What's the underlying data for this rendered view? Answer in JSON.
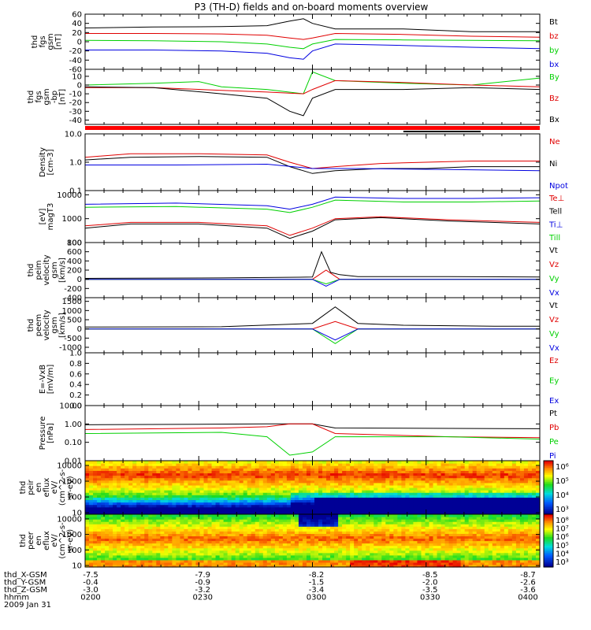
{
  "title": "P3 (TH-D) fields and on-board moments overview",
  "colors": {
    "black": "#000000",
    "red": "#e00000",
    "green": "#00d000",
    "blue": "#0000e0"
  },
  "chart_data": [
    {
      "type": "line",
      "ylabel": [
        "thd",
        "fgs",
        "gsm",
        "[nT]"
      ],
      "yticks": [
        "60",
        "40",
        "20",
        "0",
        "-20",
        "-40",
        "-60"
      ],
      "ylim": [
        -60,
        60
      ],
      "log": false,
      "series": [
        {
          "name": "Bt",
          "color": "#000000",
          "x": [
            0,
            0.15,
            0.3,
            0.4,
            0.45,
            0.48,
            0.5,
            0.55,
            0.7,
            0.85,
            1
          ],
          "y": [
            30,
            32,
            33,
            35,
            45,
            50,
            40,
            28,
            28,
            22,
            22
          ]
        },
        {
          "name": "bz",
          "color": "#e00000",
          "x": [
            0,
            0.15,
            0.3,
            0.4,
            0.45,
            0.48,
            0.5,
            0.55,
            0.7,
            0.85,
            1
          ],
          "y": [
            18,
            18,
            17,
            14,
            8,
            5,
            8,
            18,
            16,
            12,
            10
          ]
        },
        {
          "name": "by",
          "color": "#00d000",
          "x": [
            0,
            0.15,
            0.3,
            0.4,
            0.45,
            0.48,
            0.5,
            0.55,
            0.7,
            0.85,
            1
          ],
          "y": [
            3,
            2,
            0,
            -5,
            -12,
            -15,
            -5,
            5,
            4,
            3,
            2
          ]
        },
        {
          "name": "bx",
          "color": "#0000e0",
          "x": [
            0,
            0.15,
            0.3,
            0.4,
            0.45,
            0.48,
            0.5,
            0.55,
            0.7,
            0.85,
            1
          ],
          "y": [
            -18,
            -18,
            -20,
            -25,
            -35,
            -38,
            -20,
            -5,
            -8,
            -12,
            -15
          ]
        }
      ]
    },
    {
      "type": "line",
      "ylabel": [
        "thd",
        "fgs",
        "gsm",
        "-bp",
        "[nT]"
      ],
      "yticks": [
        "10",
        "0",
        "-10",
        "-20",
        "-30",
        "-40"
      ],
      "ylim": [
        -45,
        18
      ],
      "log": false,
      "series": [
        {
          "name": "By",
          "color": "#00d000",
          "x": [
            0,
            0.15,
            0.25,
            0.3,
            0.4,
            0.48,
            0.5,
            0.55,
            0.7,
            0.85,
            1
          ],
          "y": [
            0,
            2,
            4,
            -2,
            -5,
            -10,
            15,
            5,
            2,
            0,
            8
          ]
        },
        {
          "name": "Bz",
          "color": "#e00000",
          "x": [
            0,
            0.15,
            0.3,
            0.4,
            0.48,
            0.5,
            0.55,
            0.7,
            0.85,
            1
          ],
          "y": [
            -3,
            -3,
            -6,
            -8,
            -10,
            -5,
            5,
            3,
            0,
            -2
          ]
        },
        {
          "name": "Bx",
          "color": "#000000",
          "x": [
            0,
            0.15,
            0.3,
            0.4,
            0.45,
            0.48,
            0.5,
            0.55,
            0.7,
            0.85,
            1
          ],
          "y": [
            -2,
            -3,
            -10,
            -15,
            -30,
            -35,
            -15,
            -5,
            -5,
            -3,
            -5
          ]
        }
      ]
    },
    {
      "type": "line",
      "ylabel": [
        "Density",
        "[cm-3]"
      ],
      "yticks": [
        "10.0",
        "1.0",
        "0.1"
      ],
      "ylim": [
        0.1,
        10
      ],
      "log": true,
      "series": [
        {
          "name": "Ne",
          "color": "#e00000",
          "x": [
            0,
            0.1,
            0.25,
            0.4,
            0.45,
            0.5,
            0.55,
            0.65,
            0.75,
            0.85,
            1
          ],
          "y": [
            1.5,
            2,
            2,
            1.8,
            1.0,
            0.6,
            0.7,
            0.9,
            1.0,
            1.1,
            1.1
          ]
        },
        {
          "name": "Ni",
          "color": "#000000",
          "x": [
            0,
            0.1,
            0.25,
            0.4,
            0.45,
            0.5,
            0.55,
            0.65,
            0.75,
            0.85,
            1
          ],
          "y": [
            1.2,
            1.5,
            1.6,
            1.5,
            0.7,
            0.4,
            0.5,
            0.6,
            0.6,
            0.7,
            0.7
          ]
        },
        {
          "name": "Npot",
          "color": "#0000e0",
          "x": [
            0,
            0.2,
            0.4,
            0.5,
            0.6,
            0.8,
            1
          ],
          "y": [
            0.8,
            0.8,
            0.85,
            0.6,
            0.6,
            0.55,
            0.5
          ]
        }
      ]
    },
    {
      "type": "line",
      "ylabel": [
        "[eV]",
        "magT3"
      ],
      "yticks": [
        "10000",
        "1000",
        "100"
      ],
      "ylim": [
        100,
        15000
      ],
      "log": true,
      "series": [
        {
          "name": "Te⊥",
          "color": "#e00000",
          "x": [
            0,
            0.1,
            0.25,
            0.4,
            0.45,
            0.5,
            0.55,
            0.65,
            0.8,
            1
          ],
          "y": [
            500,
            700,
            700,
            500,
            200,
            400,
            1000,
            1200,
            900,
            700
          ]
        },
        {
          "name": "Tell",
          "color": "#000000",
          "x": [
            0,
            0.1,
            0.25,
            0.4,
            0.45,
            0.5,
            0.55,
            0.65,
            0.8,
            1
          ],
          "y": [
            400,
            600,
            600,
            400,
            150,
            300,
            900,
            1100,
            800,
            600
          ]
        },
        {
          "name": "Ti⊥",
          "color": "#0000e0",
          "x": [
            0,
            0.2,
            0.4,
            0.45,
            0.5,
            0.55,
            0.7,
            0.85,
            1
          ],
          "y": [
            4000,
            4500,
            3500,
            2500,
            4000,
            8000,
            7000,
            7000,
            7500
          ]
        },
        {
          "name": "Till",
          "color": "#00d000",
          "x": [
            0,
            0.2,
            0.4,
            0.45,
            0.5,
            0.55,
            0.7,
            0.85,
            1
          ],
          "y": [
            3000,
            3200,
            2500,
            1800,
            3000,
            6000,
            5000,
            5000,
            5500
          ]
        }
      ]
    },
    {
      "type": "line",
      "ylabel": [
        "thd",
        "peim",
        "velocity",
        "gsm",
        "[km/s]"
      ],
      "yticks": [
        "800",
        "600",
        "400",
        "200",
        "0",
        "-200",
        "-400"
      ],
      "ylim": [
        -400,
        800
      ],
      "log": false,
      "series": [
        {
          "name": "Vt",
          "color": "#000000",
          "x": [
            0,
            0.3,
            0.5,
            0.52,
            0.54,
            0.56,
            0.6,
            0.8,
            1
          ],
          "y": [
            20,
            30,
            50,
            600,
            150,
            100,
            60,
            60,
            50
          ]
        },
        {
          "name": "Vz",
          "color": "#e00000",
          "x": [
            0,
            0.5,
            0.53,
            0.56,
            1
          ],
          "y": [
            0,
            0,
            200,
            0,
            0
          ]
        },
        {
          "name": "Vy",
          "color": "#00d000",
          "x": [
            0,
            0.5,
            0.53,
            0.56,
            1
          ],
          "y": [
            0,
            0,
            -100,
            0,
            0
          ]
        },
        {
          "name": "Vx",
          "color": "#0000e0",
          "x": [
            0,
            0.5,
            0.53,
            0.56,
            1
          ],
          "y": [
            0,
            0,
            -150,
            0,
            0
          ]
        }
      ]
    },
    {
      "type": "line",
      "ylabel": [
        "thd",
        "peem",
        "velocity",
        "gsm",
        "[km/s]"
      ],
      "yticks": [
        "1500",
        "1000",
        "500",
        "0",
        "-500",
        "-1000"
      ],
      "ylim": [
        -1300,
        1700
      ],
      "log": false,
      "series": [
        {
          "name": "Vt",
          "color": "#000000",
          "x": [
            0,
            0.3,
            0.5,
            0.55,
            0.6,
            0.7,
            0.9,
            1
          ],
          "y": [
            100,
            120,
            300,
            1200,
            300,
            200,
            150,
            150
          ]
        },
        {
          "name": "Vz",
          "color": "#e00000",
          "x": [
            0,
            0.5,
            0.55,
            0.6,
            1
          ],
          "y": [
            0,
            0,
            400,
            0,
            0
          ]
        },
        {
          "name": "Vy",
          "color": "#00d000",
          "x": [
            0,
            0.5,
            0.55,
            0.6,
            1
          ],
          "y": [
            0,
            0,
            -800,
            0,
            0
          ]
        },
        {
          "name": "Vx",
          "color": "#0000e0",
          "x": [
            0,
            0.5,
            0.55,
            0.6,
            1
          ],
          "y": [
            0,
            0,
            -600,
            0,
            0
          ]
        }
      ]
    },
    {
      "type": "line",
      "ylabel": [
        "E=-VxB",
        "[mV/m]"
      ],
      "yticks": [
        "1.0",
        "0.8",
        "0.6",
        "0.4",
        "0.2",
        "0.0"
      ],
      "ylim": [
        0,
        1
      ],
      "log": false,
      "series": [
        {
          "name": "Ez",
          "color": "#e00000",
          "x": [],
          "y": []
        },
        {
          "name": "Ey",
          "color": "#00d000",
          "x": [],
          "y": []
        },
        {
          "name": "Ex",
          "color": "#0000e0",
          "x": [],
          "y": []
        }
      ]
    },
    {
      "type": "line",
      "ylabel": [
        "Pressure",
        "[nPa]"
      ],
      "yticks": [
        "10.00",
        "1.00",
        "0.10",
        "0.01"
      ],
      "ylim": [
        0.01,
        10
      ],
      "log": true,
      "series": [
        {
          "name": "Pt",
          "color": "#000000",
          "x": [
            0,
            0.4,
            0.5,
            0.55,
            1
          ],
          "y": [
            0.9,
            1.0,
            1.0,
            0.6,
            0.55
          ]
        },
        {
          "name": "Pb",
          "color": "#e00000",
          "x": [
            0,
            0.3,
            0.4,
            0.45,
            0.5,
            0.55,
            0.8,
            1
          ],
          "y": [
            0.5,
            0.6,
            0.7,
            1.0,
            1.0,
            0.3,
            0.2,
            0.18
          ]
        },
        {
          "name": "Pe",
          "color": "#00d000",
          "x": [
            0,
            0.3,
            0.4,
            0.45,
            0.5,
            0.55,
            0.8,
            1
          ],
          "y": [
            0.3,
            0.35,
            0.2,
            0.02,
            0.03,
            0.2,
            0.2,
            0.15
          ]
        },
        {
          "name": "Pi",
          "color": "#0000e0",
          "x": [
            0,
            0.5,
            1
          ],
          "y": [
            0.01,
            0.01,
            0.01
          ]
        }
      ]
    },
    {
      "type": "heatmap",
      "ylabel": [
        "thd",
        "peir",
        "en",
        "eflux",
        "eV/",
        "(cm^2-s-",
        "sr-eV)"
      ],
      "yticks": [
        "10000",
        "1000",
        "100",
        "10"
      ],
      "ylim": [
        8,
        20000
      ],
      "log": true,
      "colorbar": [
        "10⁶",
        "10⁵",
        "10⁴",
        "10³"
      ]
    },
    {
      "type": "heatmap",
      "ylabel": [
        "thd",
        "peer",
        "en",
        "eflux",
        "eV/",
        "(cm^2-s-",
        "sr-eV)"
      ],
      "yticks": [
        "10000",
        "1000",
        "100",
        "10"
      ],
      "ylim": [
        8,
        20000
      ],
      "log": true,
      "colorbar": [
        "10⁸",
        "10⁷",
        "10⁶",
        "10⁵",
        "10⁴",
        "10³"
      ]
    }
  ],
  "xaxis": {
    "row_labels": [
      "thd_X-GSM",
      "thd_Y-GSM",
      "thd_Z-GSM",
      "hhmm",
      "2009 Jan 31"
    ],
    "columns": [
      [
        "-7.5",
        "-0.4",
        "-3.0",
        "0200"
      ],
      [
        "-7.9",
        "-0.9",
        "-3.2",
        "0230"
      ],
      [
        "-8.2",
        "-1.5",
        "-3.4",
        "0300"
      ],
      [
        "-8.5",
        "-2.0",
        "-3.5",
        "0330"
      ],
      [
        "-8.7",
        "-2.6",
        "-3.6",
        "0400"
      ]
    ]
  }
}
